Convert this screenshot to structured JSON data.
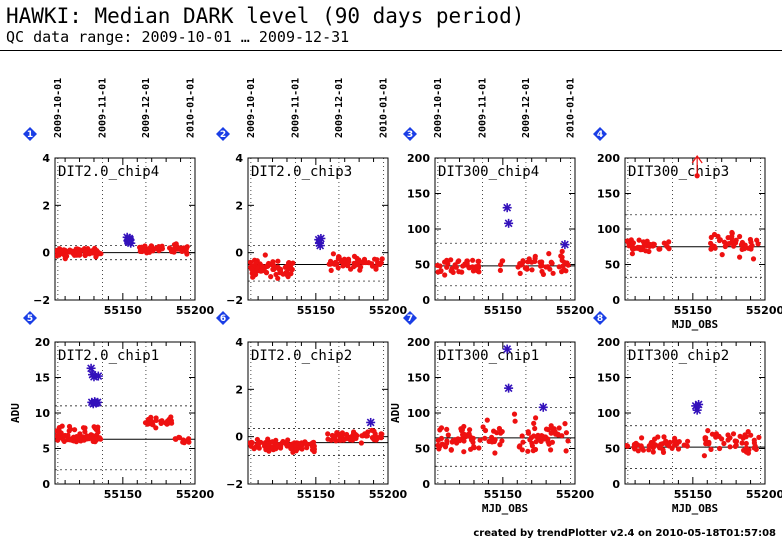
{
  "header": {
    "title": "HAWKI: Median DARK level (90 days period)",
    "subtitle": "QC data range: 2009-10-01 … 2009-12-31"
  },
  "footer": {
    "credit": "created by trendPlotter v2.4 on 2010-05-18T01:57:08"
  },
  "colors": {
    "points": "#ee1111",
    "stars": "#3311bb",
    "badge": "#1a3ee6",
    "refline": "#000000"
  },
  "date_axis": {
    "labels": [
      "2009-10-01",
      "2009-11-01",
      "2009-12-01",
      "2010-01-01"
    ],
    "mjd": [
      55105,
      55136,
      55166,
      55197
    ]
  },
  "chart_data": [
    {
      "id": 1,
      "type": "scatter",
      "title": "DIT2.0_chip4",
      "xlim": [
        55103,
        55200
      ],
      "ylim": [
        -2,
        4
      ],
      "yticks": [
        -2,
        0,
        2,
        4
      ],
      "xticks": [
        55150,
        55200
      ],
      "xlabel": "",
      "ylabel": "",
      "show_dates": true,
      "ref": 0,
      "bands": [
        0.3,
        -0.3
      ],
      "trend": [
        0,
        0
      ],
      "seed": 1,
      "segments": [
        {
          "x0": 55104,
          "x1": 55121,
          "n": 45,
          "mean": 0.0,
          "spread": 0.12
        },
        {
          "x0": 55123,
          "x1": 55135,
          "n": 30,
          "mean": 0.0,
          "spread": 0.12
        },
        {
          "x0": 55161,
          "x1": 55195,
          "n": 55,
          "mean": 0.15,
          "spread": 0.12
        }
      ],
      "stars": [
        [
          55153,
          0.65
        ],
        [
          55153.5,
          0.5
        ],
        [
          55154,
          0.45
        ],
        [
          55154.5,
          0.6
        ],
        [
          55155,
          0.55
        ],
        [
          55155.5,
          0.4
        ]
      ]
    },
    {
      "id": 2,
      "type": "scatter",
      "title": "DIT2.0_chip3",
      "xlim": [
        55103,
        55200
      ],
      "ylim": [
        -2,
        4
      ],
      "yticks": [
        -2,
        0,
        2,
        4
      ],
      "xticks": [
        55150,
        55200
      ],
      "xlabel": "",
      "ylabel": "",
      "show_dates": true,
      "ref": -0.5,
      "bands": [
        0.3,
        -1.2
      ],
      "trend": [
        0,
        0
      ],
      "seed": 2,
      "segments": [
        {
          "x0": 55104,
          "x1": 55135,
          "n": 70,
          "mean": -0.65,
          "spread": 0.25
        },
        {
          "x0": 55158,
          "x1": 55196,
          "n": 55,
          "mean": -0.45,
          "spread": 0.2
        }
      ],
      "stars": [
        [
          55152,
          0.55
        ],
        [
          55152.5,
          0.4
        ],
        [
          55153,
          0.3
        ],
        [
          55153.5,
          0.6
        ]
      ]
    },
    {
      "id": 3,
      "type": "scatter",
      "title": "DIT300_chip4",
      "xlim": [
        55103,
        55200
      ],
      "ylim": [
        0,
        200
      ],
      "yticks": [
        0,
        50,
        100,
        150,
        200
      ],
      "xticks": [
        55150,
        55200
      ],
      "xlabel": "",
      "ylabel": "",
      "show_dates": true,
      "ref": 48,
      "bands": [
        80,
        20
      ],
      "trend": [
        0,
        0
      ],
      "seed": 3,
      "segments": [
        {
          "x0": 55104,
          "x1": 55135,
          "n": 45,
          "mean": 48,
          "spread": 7
        },
        {
          "x0": 55148,
          "x1": 55150,
          "n": 4,
          "mean": 50,
          "spread": 8
        },
        {
          "x0": 55160,
          "x1": 55196,
          "n": 45,
          "mean": 52,
          "spread": 9
        }
      ],
      "stars": [
        [
          55153,
          130
        ],
        [
          55154,
          108
        ],
        [
          55193,
          78
        ]
      ]
    },
    {
      "id": 4,
      "type": "scatter",
      "title": "DIT300_chip3",
      "xlim": [
        55103,
        55200
      ],
      "ylim": [
        0,
        200
      ],
      "yticks": [
        0,
        50,
        100,
        150,
        200
      ],
      "xticks": [
        55150,
        55200
      ],
      "xlabel": "MJD_OBS",
      "ylabel": "",
      "show_dates": false,
      "ref": 75,
      "bands": [
        120,
        32
      ],
      "trend": [
        0,
        0
      ],
      "seed": 4,
      "segments": [
        {
          "x0": 55104,
          "x1": 55135,
          "n": 45,
          "mean": 76,
          "spread": 6
        },
        {
          "x0": 55160,
          "x1": 55196,
          "n": 40,
          "mean": 78,
          "spread": 10
        }
      ],
      "stars": [],
      "arrow_x": 55153,
      "arrow_y": 175
    },
    {
      "id": 5,
      "type": "scatter",
      "title": "DIT2.0_chip1",
      "xlim": [
        55103,
        55200
      ],
      "ylim": [
        0,
        20
      ],
      "yticks": [
        0,
        5,
        10,
        15,
        20
      ],
      "xticks": [
        55150,
        55200
      ],
      "xlabel": "",
      "ylabel": "ADU",
      "show_dates": false,
      "ref": 6.3,
      "bands": [
        11,
        2
      ],
      "trend": [
        0,
        0
      ],
      "seed": 5,
      "segments": [
        {
          "x0": 55104,
          "x1": 55135,
          "n": 55,
          "mean": 6.4,
          "spread": 0.35
        },
        {
          "x0": 55104,
          "x1": 55135,
          "n": 20,
          "mean": 7.6,
          "spread": 0.3
        },
        {
          "x0": 55165,
          "x1": 55184,
          "n": 28,
          "mean": 8.8,
          "spread": 0.4
        },
        {
          "x0": 55185,
          "x1": 55196,
          "n": 12,
          "mean": 6.2,
          "spread": 0.3
        }
      ],
      "stars": [
        [
          55128,
          16.3
        ],
        [
          55129,
          15.4
        ],
        [
          55130,
          15.1
        ],
        [
          55128.5,
          11.5
        ],
        [
          55129.5,
          11.3
        ],
        [
          55130.5,
          11.6
        ],
        [
          55131.5,
          11.4
        ],
        [
          55132.5,
          11.5
        ],
        [
          55133,
          15.2
        ]
      ]
    },
    {
      "id": 6,
      "type": "scatter",
      "title": "DIT2.0_chip2",
      "xlim": [
        55103,
        55200
      ],
      "ylim": [
        -2,
        4
      ],
      "yticks": [
        -2,
        0,
        2,
        4
      ],
      "xticks": [
        55150,
        55200
      ],
      "xlabel": "",
      "ylabel": "",
      "show_dates": false,
      "ref": -0.25,
      "bands": [
        0.35,
        -0.8
      ],
      "trend": [
        0,
        0
      ],
      "seed": 6,
      "segments": [
        {
          "x0": 55104,
          "x1": 55150,
          "n": 80,
          "mean": -0.35,
          "spread": 0.15
        },
        {
          "x0": 55158,
          "x1": 55196,
          "n": 55,
          "mean": 0.0,
          "spread": 0.15
        }
      ],
      "stars": [
        [
          55188,
          0.6
        ]
      ]
    },
    {
      "id": 7,
      "type": "scatter",
      "title": "DIT300_chip1",
      "xlim": [
        55103,
        55200
      ],
      "ylim": [
        0,
        200
      ],
      "yticks": [
        0,
        50,
        100,
        150,
        200
      ],
      "xticks": [
        55150,
        55200
      ],
      "xlabel": "MJD_OBS",
      "ylabel": "ADU",
      "show_dates": false,
      "ref": 65,
      "bands": [
        108,
        25
      ],
      "trend": [
        0,
        0
      ],
      "seed": 7,
      "segments": [
        {
          "x0": 55104,
          "x1": 55150,
          "n": 65,
          "mean": 66,
          "spread": 12
        },
        {
          "x0": 55158,
          "x1": 55196,
          "n": 50,
          "mean": 70,
          "spread": 15
        }
      ],
      "stars": [
        [
          55153,
          190
        ],
        [
          55154,
          135
        ],
        [
          55178,
          108
        ]
      ]
    },
    {
      "id": 8,
      "type": "scatter",
      "title": "DIT300_chip2",
      "xlim": [
        55103,
        55200
      ],
      "ylim": [
        0,
        200
      ],
      "yticks": [
        0,
        50,
        100,
        150,
        200
      ],
      "xticks": [
        55150,
        55200
      ],
      "xlabel": "MJD_OBS",
      "ylabel": "",
      "show_dates": false,
      "ref": 52,
      "bands": [
        82,
        22
      ],
      "trend": [
        0,
        0
      ],
      "seed": 8,
      "segments": [
        {
          "x0": 55104,
          "x1": 55148,
          "n": 55,
          "mean": 54,
          "spread": 7
        },
        {
          "x0": 55158,
          "x1": 55196,
          "n": 45,
          "mean": 58,
          "spread": 9
        }
      ],
      "stars": [
        [
          55152,
          110
        ],
        [
          55153,
          104
        ],
        [
          55154,
          112
        ]
      ]
    }
  ]
}
